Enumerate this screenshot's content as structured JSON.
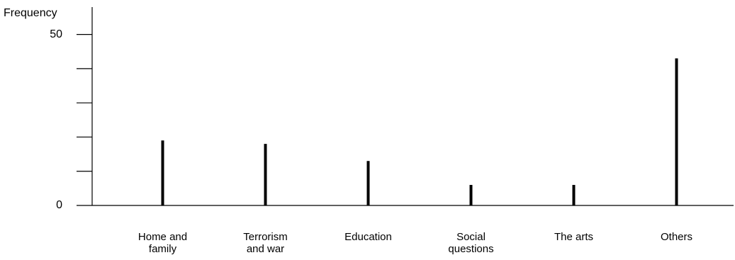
{
  "chart_data": {
    "type": "bar",
    "y_label": "Frequency",
    "categories": [
      "Home and family",
      "Terrorism and war",
      "Education",
      "Social questions",
      "The arts",
      "Others"
    ],
    "values": [
      19,
      18,
      13,
      6,
      6,
      43
    ],
    "color": "#000000",
    "ylim": [
      0,
      58
    ],
    "yticks": [
      0,
      50
    ],
    "yminor_ticks": [
      10,
      20,
      30,
      40
    ],
    "grid": false
  }
}
